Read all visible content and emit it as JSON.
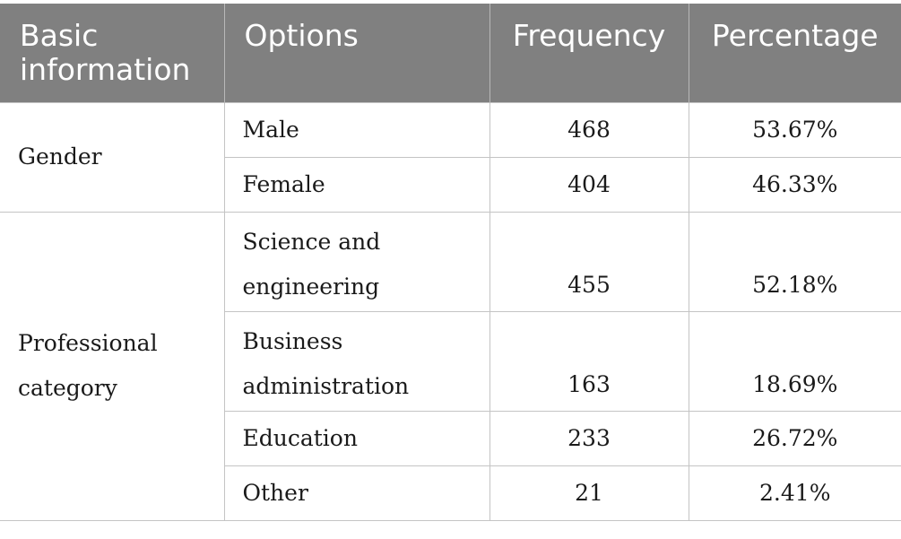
{
  "table": {
    "headers": {
      "basic_information": "Basic information",
      "options": "Options",
      "frequency": "Frequency",
      "percentage": "Percentage"
    },
    "groups": [
      {
        "category": "Gender",
        "rows": [
          {
            "option": "Male",
            "frequency": "468",
            "percentage": "53.67%"
          },
          {
            "option": "Female",
            "frequency": "404",
            "percentage": "46.33%"
          }
        ]
      },
      {
        "category": "Professional category",
        "rows": [
          {
            "option": "Science and engineering",
            "frequency": "455",
            "percentage": "52.18%"
          },
          {
            "option": "Business administration",
            "frequency": "163",
            "percentage": "18.69%"
          },
          {
            "option": "Education",
            "frequency": "233",
            "percentage": "26.72%"
          },
          {
            "option": "Other",
            "frequency": "21",
            "percentage": "2.41%"
          }
        ]
      }
    ]
  }
}
